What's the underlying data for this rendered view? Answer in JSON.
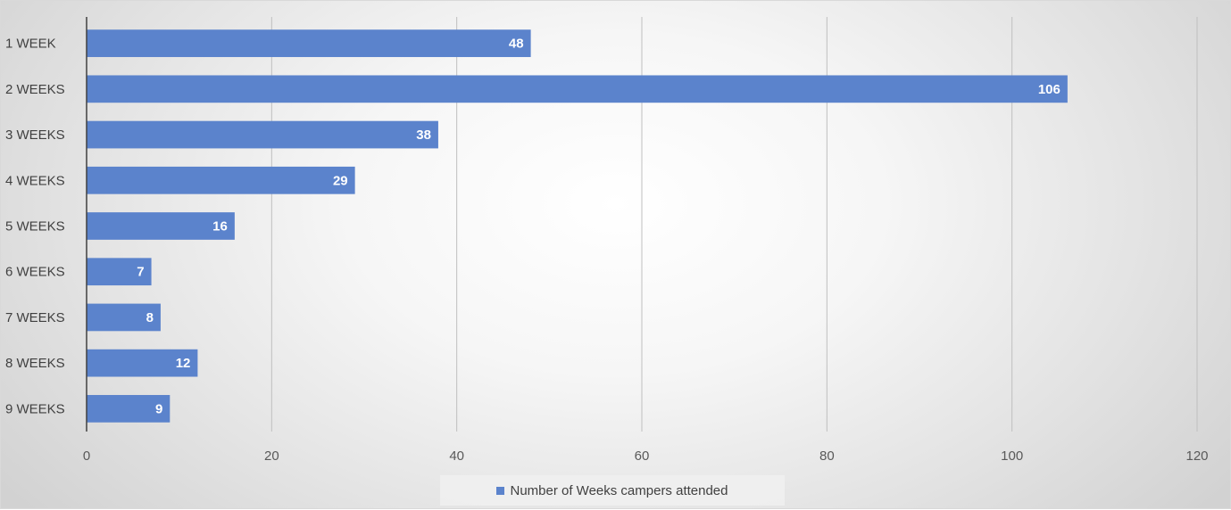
{
  "chart_data": {
    "type": "bar",
    "orientation": "horizontal",
    "categories": [
      "1 WEEK",
      "2 WEEKS",
      "3 WEEKS",
      "4 WEEKS",
      "5 WEEKS",
      "6 WEEKS",
      "7 WEEKS",
      "8 WEEKS",
      "9 WEEKS"
    ],
    "series": [
      {
        "name": "Number of Weeks campers attended",
        "values": [
          48,
          106,
          38,
          29,
          16,
          7,
          8,
          12,
          9
        ],
        "color": "#5b83cc"
      }
    ],
    "xlim": [
      0,
      120
    ],
    "xticks": [
      "0",
      "20",
      "40",
      "60",
      "80",
      "100",
      "120"
    ],
    "grid": true,
    "legend_position": "bottom",
    "data_labels": true
  }
}
